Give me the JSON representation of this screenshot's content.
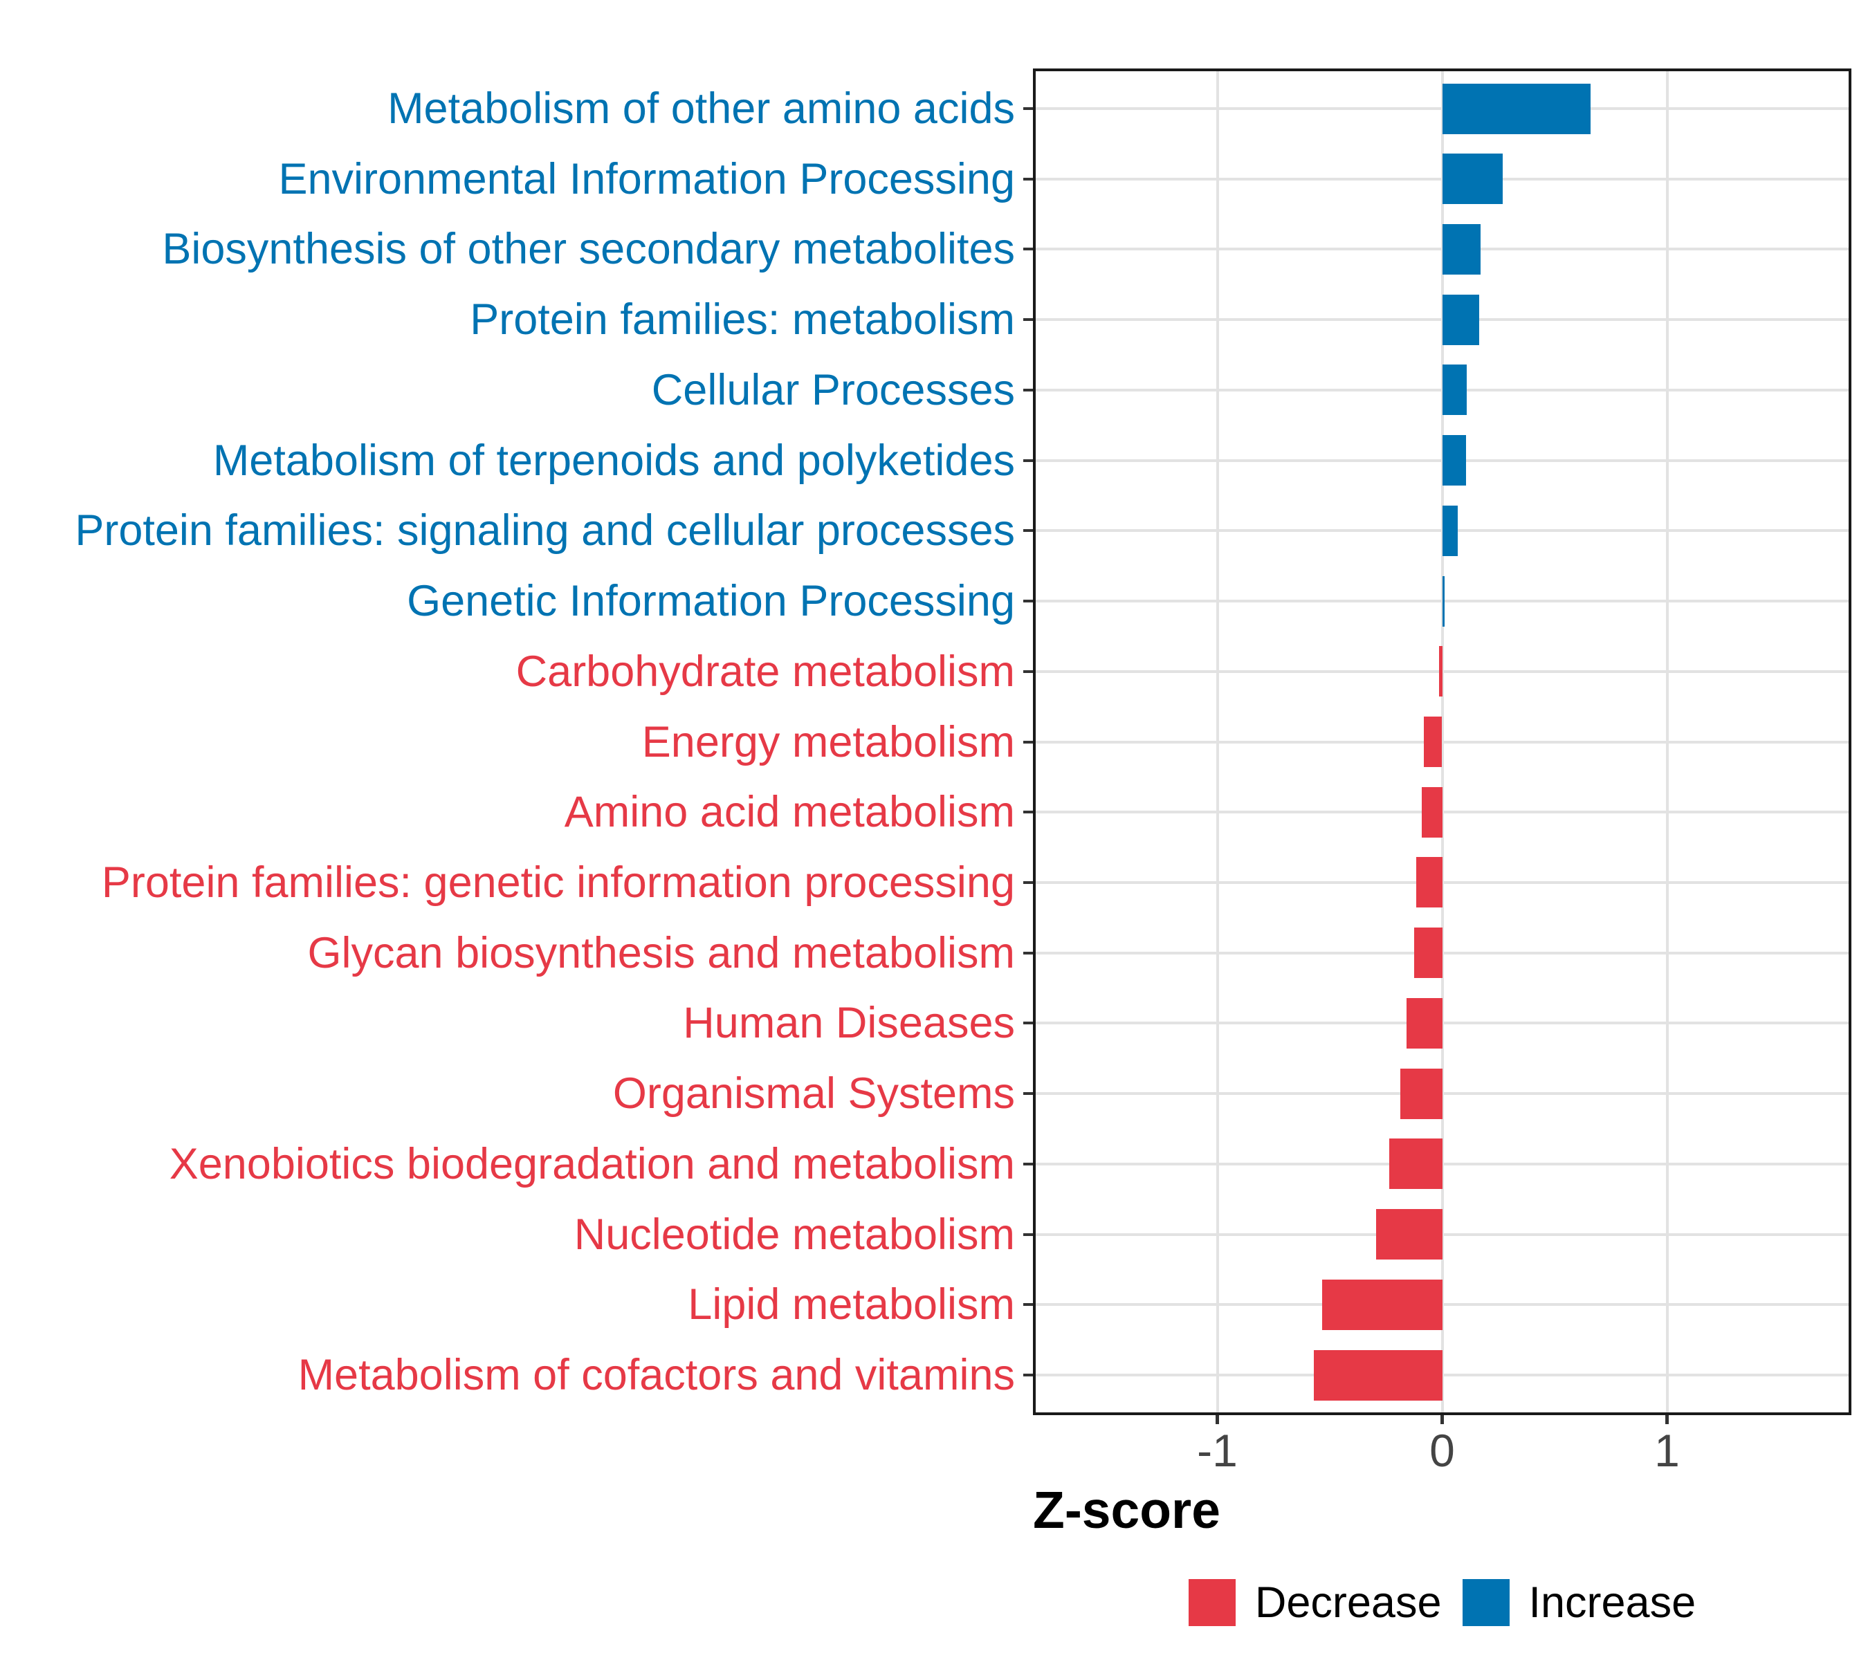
{
  "chart_data": {
    "type": "bar",
    "orientation": "horizontal",
    "title": "",
    "xlabel": "Z-score",
    "ylabel": "",
    "xlim": [
      -1.82,
      1.82
    ],
    "x_ticks": [
      -1,
      0,
      1
    ],
    "x_tick_labels": [
      "-1",
      "0",
      "1"
    ],
    "grid": true,
    "legend_position": "bottom",
    "bar_colors": {
      "increase": "#0073B2",
      "decrease": "#E63946"
    },
    "axis_text_color": "#444444",
    "gridline_color": "#E2E2E2",
    "categories": [
      "Metabolism of other amino acids",
      "Environmental Information Processing",
      "Biosynthesis of other secondary metabolites",
      "Protein families: metabolism",
      "Cellular Processes",
      "Metabolism of terpenoids and polyketides",
      "Protein families: signaling and cellular processes",
      "Genetic Information Processing",
      "Carbohydrate metabolism",
      "Energy metabolism",
      "Amino acid metabolism",
      "Protein families: genetic information processing",
      "Glycan biosynthesis and metabolism",
      "Human Diseases",
      "Organismal Systems",
      "Xenobiotics biodegradation and metabolism",
      "Nucleotide metabolism",
      "Lipid metabolism",
      "Metabolism of cofactors and vitamins"
    ],
    "values": [
      0.66,
      0.27,
      0.17,
      0.165,
      0.11,
      0.105,
      0.07,
      0.012,
      -0.015,
      -0.083,
      -0.09,
      -0.115,
      -0.125,
      -0.16,
      -0.185,
      -0.235,
      -0.295,
      -0.535,
      -0.57
    ],
    "directions": [
      "increase",
      "increase",
      "increase",
      "increase",
      "increase",
      "increase",
      "increase",
      "increase",
      "decrease",
      "decrease",
      "decrease",
      "decrease",
      "decrease",
      "decrease",
      "decrease",
      "decrease",
      "decrease",
      "decrease",
      "decrease"
    ],
    "legend": [
      {
        "label": "Decrease",
        "color": "#E63946"
      },
      {
        "label": "Increase",
        "color": "#0073B2"
      }
    ]
  }
}
